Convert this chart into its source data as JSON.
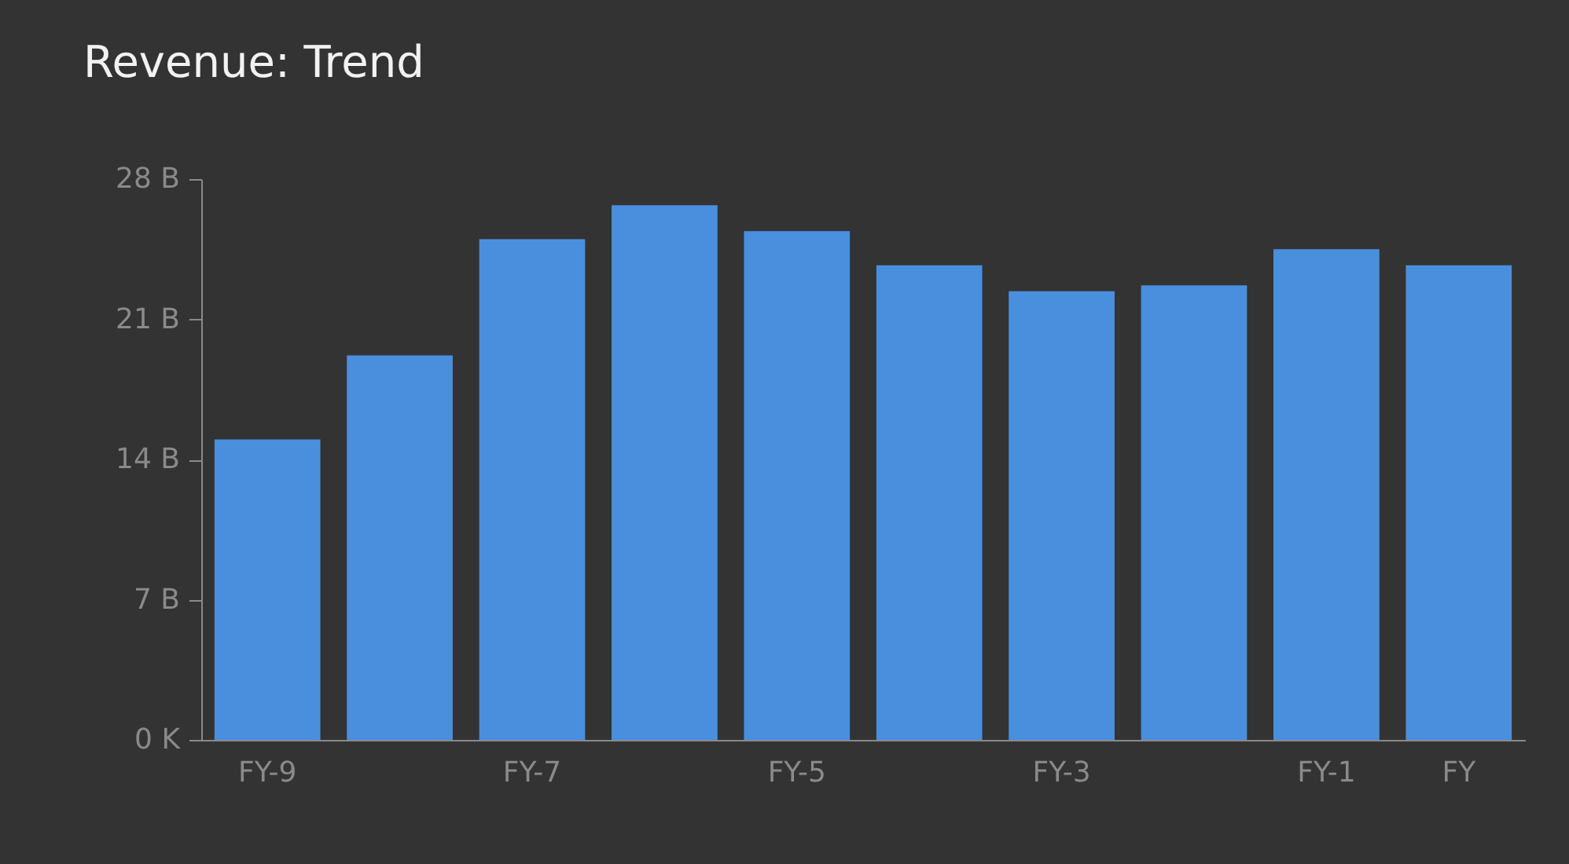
{
  "chart_data": {
    "type": "bar",
    "title": "Revenue: Trend",
    "categories": [
      "FY-9",
      null,
      "FY-7",
      null,
      "FY-5",
      null,
      "FY-3",
      null,
      "FY-1",
      "FY"
    ],
    "values": [
      15.0,
      19.2,
      25.0,
      26.7,
      25.4,
      23.7,
      22.4,
      22.7,
      24.5,
      23.7
    ],
    "color": "#4a8fdd",
    "ylim": [
      0,
      28
    ],
    "yticks": [
      {
        "value": 0,
        "label": "0 K"
      },
      {
        "value": 7,
        "label": "7 B"
      },
      {
        "value": 14,
        "label": "14 B"
      },
      {
        "value": 21,
        "label": "21 B"
      },
      {
        "value": 28,
        "label": "28 B"
      }
    ],
    "grid": false
  }
}
